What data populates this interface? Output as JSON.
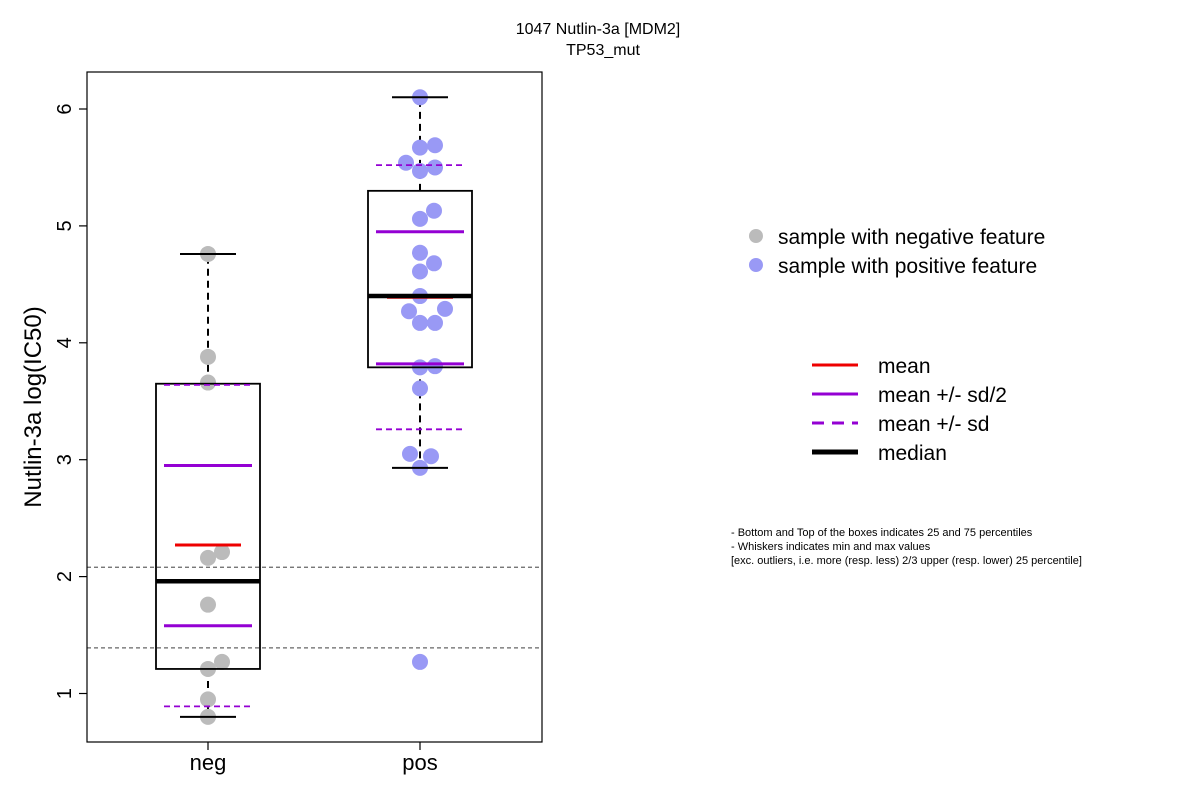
{
  "chart_data": {
    "type": "box",
    "title": "1047 Nutlin-3a [MDM2]",
    "subtitle": "TP53_mut",
    "ylabel": "Nutlin-3a log(IC50)",
    "xlabel": "",
    "ylim": [
      0.6,
      6.3
    ],
    "yticks": [
      1,
      2,
      3,
      4,
      5,
      6
    ],
    "categories": [
      "neg",
      "pos"
    ],
    "reference_lines": [
      2.08,
      1.39
    ],
    "groups": [
      {
        "name": "neg",
        "color": "#bbbbbb",
        "q1": 1.21,
        "median": 1.96,
        "q3": 3.65,
        "whisker_low": 0.8,
        "whisker_high": 4.76,
        "mean": 2.27,
        "mean_minus_half_sd": 1.58,
        "mean_plus_half_sd": 2.95,
        "mean_minus_sd": 0.89,
        "mean_plus_sd": 3.64,
        "points": [
          {
            "x": 0.0,
            "y": 4.76
          },
          {
            "x": 0.0,
            "y": 3.88
          },
          {
            "x": 0.0,
            "y": 3.66
          },
          {
            "x": 0.14,
            "y": 2.21
          },
          {
            "x": 0.0,
            "y": 2.16
          },
          {
            "x": 0.0,
            "y": 1.76
          },
          {
            "x": 0.14,
            "y": 1.27
          },
          {
            "x": 0.0,
            "y": 1.21
          },
          {
            "x": 0.0,
            "y": 0.95
          },
          {
            "x": 0.0,
            "y": 0.8
          }
        ]
      },
      {
        "name": "pos",
        "color": "#9999f5",
        "q1": 3.79,
        "median": 4.4,
        "q3": 5.3,
        "whisker_low": 2.93,
        "whisker_high": 6.1,
        "mean": 4.39,
        "mean_minus_half_sd": 3.82,
        "mean_plus_half_sd": 4.95,
        "mean_minus_sd": 3.26,
        "mean_plus_sd": 5.52,
        "points": [
          {
            "x": 0.0,
            "y": 6.1
          },
          {
            "x": 0.0,
            "y": 5.67
          },
          {
            "x": 0.15,
            "y": 5.69
          },
          {
            "x": -0.14,
            "y": 5.54
          },
          {
            "x": 0.0,
            "y": 5.47
          },
          {
            "x": 0.15,
            "y": 5.5
          },
          {
            "x": 0.14,
            "y": 5.13
          },
          {
            "x": 0.0,
            "y": 5.06
          },
          {
            "x": 0.0,
            "y": 4.77
          },
          {
            "x": 0.14,
            "y": 4.68
          },
          {
            "x": 0.0,
            "y": 4.61
          },
          {
            "x": 0.0,
            "y": 4.4
          },
          {
            "x": -0.11,
            "y": 4.27
          },
          {
            "x": 0.25,
            "y": 4.29
          },
          {
            "x": 0.0,
            "y": 4.17
          },
          {
            "x": 0.15,
            "y": 4.17
          },
          {
            "x": 0.0,
            "y": 3.79
          },
          {
            "x": 0.15,
            "y": 3.8
          },
          {
            "x": 0.0,
            "y": 3.61
          },
          {
            "x": -0.1,
            "y": 3.05
          },
          {
            "x": 0.11,
            "y": 3.03
          },
          {
            "x": 0.0,
            "y": 2.93
          },
          {
            "x": 0.0,
            "y": 1.27
          }
        ]
      }
    ],
    "legend_points": [
      {
        "label": "sample with negative feature",
        "color": "#bbbbbb"
      },
      {
        "label": "sample with positive feature",
        "color": "#9999f5"
      }
    ],
    "legend_lines": [
      {
        "label": "mean",
        "color": "#ee0000",
        "style": "solid"
      },
      {
        "label": "mean +/- sd/2",
        "color": "#9400d3",
        "style": "solid"
      },
      {
        "label": "mean +/- sd",
        "color": "#9400d3",
        "style": "dashed"
      },
      {
        "label": "median",
        "color": "#000000",
        "style": "thick"
      }
    ],
    "notes": [
      "- Bottom and Top of the boxes indicates 25 and 75 percentiles",
      "- Whiskers indicates min and max values",
      "[exc. outliers, i.e. more (resp. less) 2/3 upper (resp. lower) 25 percentile]"
    ]
  }
}
